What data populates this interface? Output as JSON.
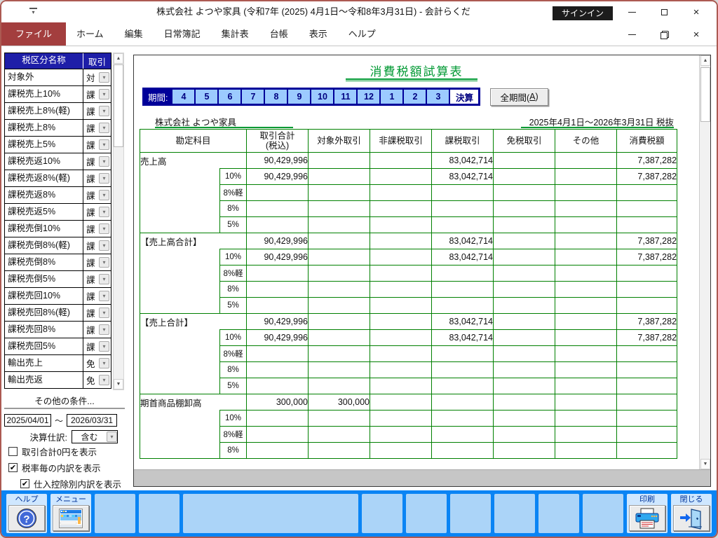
{
  "window": {
    "title": "株式会社 よつや家具 (令和7年 (2025) 4月1日～令和8年3月31日) - 会計らくだ",
    "signin_label": "サインイン"
  },
  "icons": {
    "quick_access": "▾",
    "chevron_down": "▾",
    "check": "✔",
    "scroll_up": "▲",
    "scroll_down": "▼",
    "close_glyph": "×"
  },
  "menubar": {
    "items": [
      "ファイル",
      "ホーム",
      "編集",
      "日常簿記",
      "集計表",
      "台帳",
      "表示",
      "ヘルプ"
    ]
  },
  "sidebar": {
    "header": {
      "name_col": "税区分名称",
      "txn_col": "取引"
    },
    "rows": [
      {
        "name": "対象外",
        "code": "対"
      },
      {
        "name": "課税売上10%",
        "code": "課"
      },
      {
        "name": "課税売上8%(軽)",
        "code": "課"
      },
      {
        "name": "課税売上8%",
        "code": "課"
      },
      {
        "name": "課税売上5%",
        "code": "課"
      },
      {
        "name": "課税売返10%",
        "code": "課"
      },
      {
        "name": "課税売返8%(軽)",
        "code": "課"
      },
      {
        "name": "課税売返8%",
        "code": "課"
      },
      {
        "name": "課税売返5%",
        "code": "課"
      },
      {
        "name": "課税売倒10%",
        "code": "課"
      },
      {
        "name": "課税売倒8%(軽)",
        "code": "課"
      },
      {
        "name": "課税売倒8%",
        "code": "課"
      },
      {
        "name": "課税売倒5%",
        "code": "課"
      },
      {
        "name": "課税売回10%",
        "code": "課"
      },
      {
        "name": "課税売回8%(軽)",
        "code": "課"
      },
      {
        "name": "課税売回8%",
        "code": "課"
      },
      {
        "name": "課税売回5%",
        "code": "課"
      },
      {
        "name": "輸出売上",
        "code": "免"
      },
      {
        "name": "輸出売返",
        "code": "免"
      }
    ],
    "other_conditions_label": "その他の条件...",
    "date_from": "2025/04/01",
    "date_separator": "～",
    "date_to": "2026/03/31",
    "closing_entry_label": "決算仕訳:",
    "closing_entry_value": "含む",
    "checkboxes": [
      {
        "label": "取引合計0円を表示",
        "checked": false,
        "indent": false
      },
      {
        "label": "税率毎の内訳を表示",
        "checked": true,
        "indent": false
      },
      {
        "label": "仕入控除別内訳を表示",
        "checked": true,
        "indent": true
      }
    ]
  },
  "main": {
    "report_title": "消費税額試算表",
    "period_label": "期間:",
    "periods": [
      "4",
      "5",
      "6",
      "7",
      "8",
      "9",
      "10",
      "11",
      "12",
      "1",
      "2",
      "3"
    ],
    "closing_period": "決算",
    "all_period_button": {
      "prefix": "全期間(",
      "key": "A",
      "suffix": ")"
    },
    "company": "株式会社 よつや家具",
    "date_range": "2025年4月1日～2026年3月31日 税抜",
    "table": {
      "headers": [
        "勘定科目",
        "取引合計\n(税込)",
        "対象外取引",
        "非課税取引",
        "課税取引",
        "免税取引",
        "その他",
        "消費税額"
      ],
      "rows": [
        {
          "label": "売上高",
          "sub": false,
          "values": [
            "90,429,996",
            "",
            "",
            "83,042,714",
            "",
            "",
            "7,387,282"
          ]
        },
        {
          "label": "10%",
          "sub": true,
          "values": [
            "90,429,996",
            "",
            "",
            "83,042,714",
            "",
            "",
            "7,387,282"
          ]
        },
        {
          "label": "8%軽",
          "sub": true,
          "values": [
            "",
            "",
            "",
            "",
            "",
            "",
            ""
          ]
        },
        {
          "label": "8%",
          "sub": true,
          "values": [
            "",
            "",
            "",
            "",
            "",
            "",
            ""
          ]
        },
        {
          "label": "5%",
          "sub": true,
          "values": [
            "",
            "",
            "",
            "",
            "",
            "",
            ""
          ]
        },
        {
          "label": "【売上高合計】",
          "sub": false,
          "values": [
            "90,429,996",
            "",
            "",
            "83,042,714",
            "",
            "",
            "7,387,282"
          ]
        },
        {
          "label": "10%",
          "sub": true,
          "values": [
            "90,429,996",
            "",
            "",
            "83,042,714",
            "",
            "",
            "7,387,282"
          ]
        },
        {
          "label": "8%軽",
          "sub": true,
          "values": [
            "",
            "",
            "",
            "",
            "",
            "",
            ""
          ]
        },
        {
          "label": "8%",
          "sub": true,
          "values": [
            "",
            "",
            "",
            "",
            "",
            "",
            ""
          ]
        },
        {
          "label": "5%",
          "sub": true,
          "values": [
            "",
            "",
            "",
            "",
            "",
            "",
            ""
          ]
        },
        {
          "label": "【売上合計】",
          "sub": false,
          "values": [
            "90,429,996",
            "",
            "",
            "83,042,714",
            "",
            "",
            "7,387,282"
          ]
        },
        {
          "label": "10%",
          "sub": true,
          "values": [
            "90,429,996",
            "",
            "",
            "83,042,714",
            "",
            "",
            "7,387,282"
          ]
        },
        {
          "label": "8%軽",
          "sub": true,
          "values": [
            "",
            "",
            "",
            "",
            "",
            "",
            ""
          ]
        },
        {
          "label": "8%",
          "sub": true,
          "values": [
            "",
            "",
            "",
            "",
            "",
            "",
            ""
          ]
        },
        {
          "label": "5%",
          "sub": true,
          "values": [
            "",
            "",
            "",
            "",
            "",
            "",
            ""
          ]
        },
        {
          "label": "期首商品棚卸高",
          "sub": false,
          "values": [
            "300,000",
            "300,000",
            "",
            "",
            "",
            "",
            ""
          ]
        },
        {
          "label": "10%",
          "sub": true,
          "values": [
            "",
            "",
            "",
            "",
            "",
            "",
            ""
          ]
        },
        {
          "label": "8%軽",
          "sub": true,
          "values": [
            "",
            "",
            "",
            "",
            "",
            "",
            ""
          ]
        },
        {
          "label": "8%",
          "sub": true,
          "values": [
            "",
            "",
            "",
            "",
            "",
            "",
            ""
          ]
        }
      ]
    }
  },
  "toolbar": {
    "help_label": "ヘルプ",
    "menu_label": "メニュー",
    "print_label": "印刷",
    "close_label": "閉じる"
  },
  "colors": {
    "accent_maroon": "#A33E3E",
    "sidebar_header_navy": "#1E1EA8",
    "period_navy": "#000099",
    "period_cell_blue": "#9CCBFF",
    "table_border_green": "#008000",
    "title_green": "#009933",
    "toolbar_blue": "#0A84F4",
    "toolbar_cell_blue": "#ABD4F8",
    "signin_black": "#1C1C1C"
  }
}
